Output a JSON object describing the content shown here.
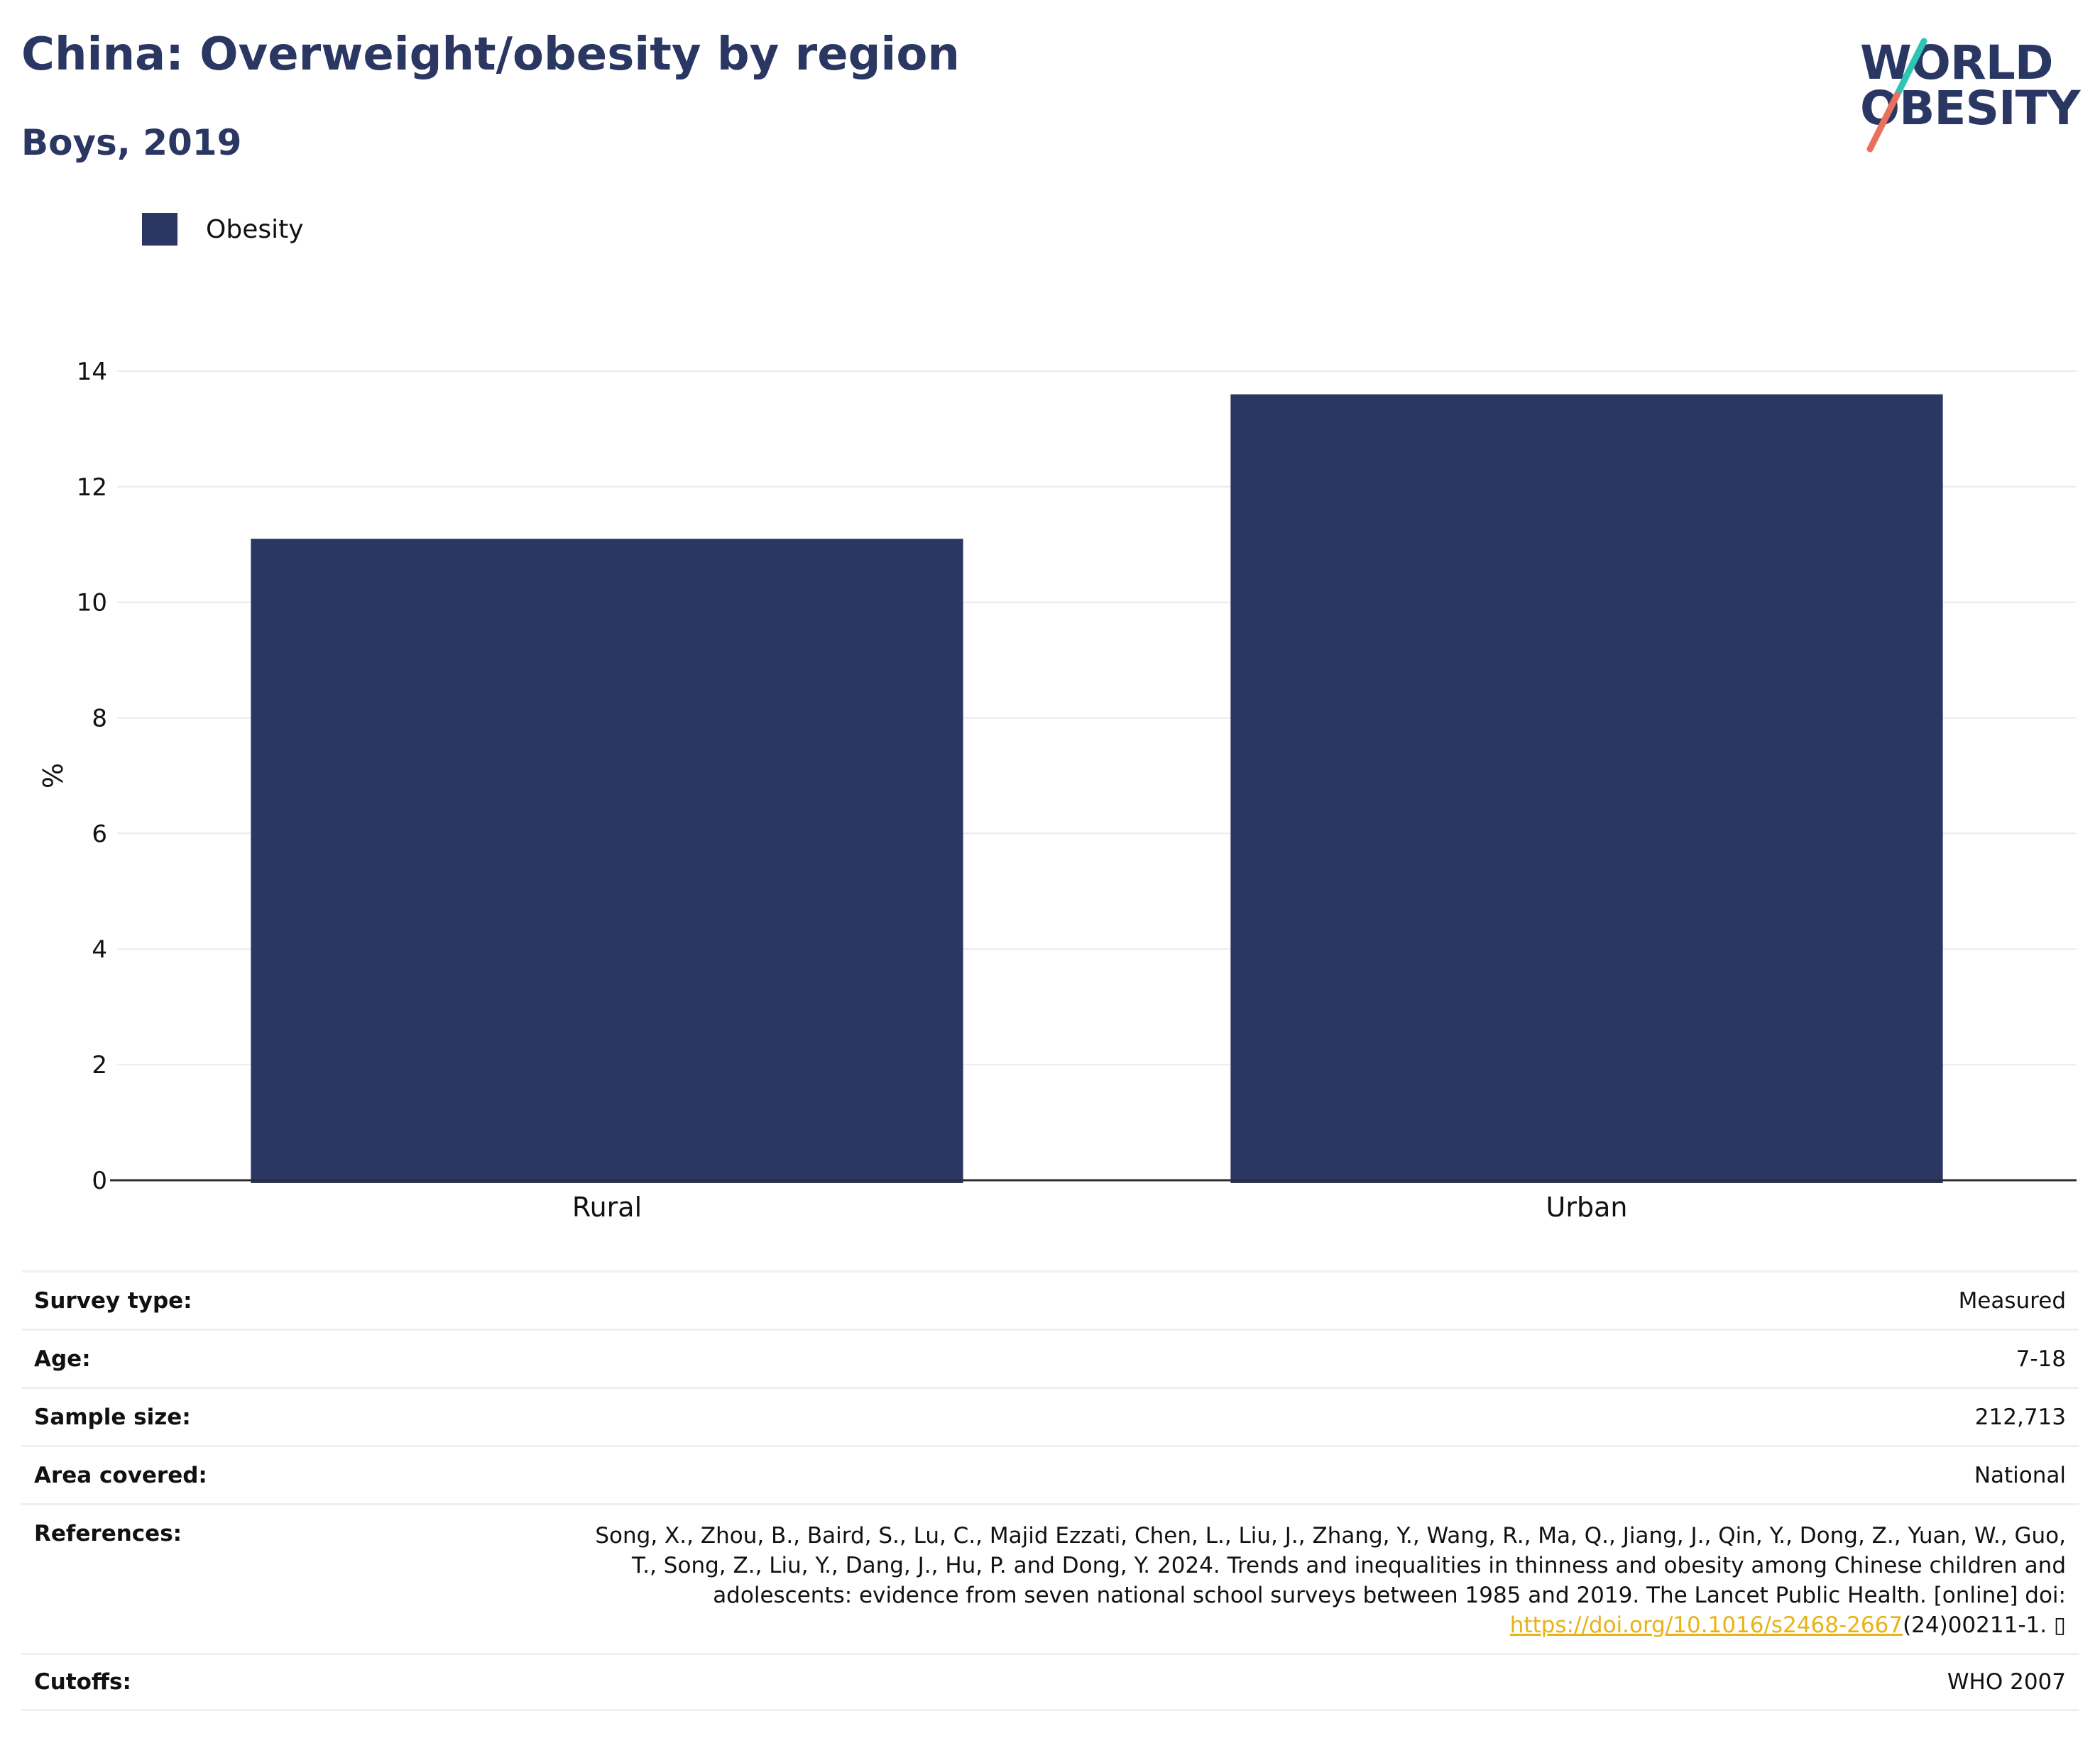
{
  "header": {
    "title": "China: Overweight/obesity by region",
    "subtitle": "Boys, 2019"
  },
  "logo": {
    "line1": "WORLD",
    "line2": "OBESITY",
    "slash_colors": [
      "#2ec4b6",
      "#e8705c"
    ]
  },
  "colors": {
    "bar": "#2b3763",
    "grid": "#e9ebef",
    "link": "#e9b314"
  },
  "chart_data": {
    "type": "bar",
    "categories": [
      "Rural",
      "Urban"
    ],
    "series": [
      {
        "name": "Obesity",
        "values": [
          11.1,
          13.6
        ]
      }
    ],
    "ylabel": "%",
    "ylim": [
      0,
      14
    ],
    "yticks": [
      0,
      2,
      4,
      6,
      8,
      10,
      12,
      14
    ],
    "grid": true,
    "legend_position": "top-left"
  },
  "info": {
    "survey_type": {
      "label": "Survey type:",
      "value": "Measured"
    },
    "age": {
      "label": "Age:",
      "value": "7-18"
    },
    "sample_size": {
      "label": "Sample size:",
      "value": "212,713"
    },
    "area": {
      "label": "Area covered:",
      "value": "National"
    },
    "references": {
      "label": "References:",
      "text": "Song, X., Zhou, B., Baird, S., Lu, C., Majid Ezzati, Chen, L., Liu, J., Zhang, Y., Wang, R., Ma, Q., Jiang, J., Qin, Y., Dong, Z., Yuan, W., Guo, T., Song, Z., Liu, Y., Dang, J., Hu, P. and Dong, Y. 2024. Trends and inequalities in thinness and obesity among Chinese children and adolescents: evidence from seven national school surveys between 1985 and 2019. The Lancet Public Health. [online] doi: ",
      "link": "https://doi.org/10.1016/s2468-2667",
      "suffix": "(24)00211-1. ▯"
    },
    "cutoffs": {
      "label": "Cutoffs:",
      "value": "WHO 2007"
    }
  }
}
